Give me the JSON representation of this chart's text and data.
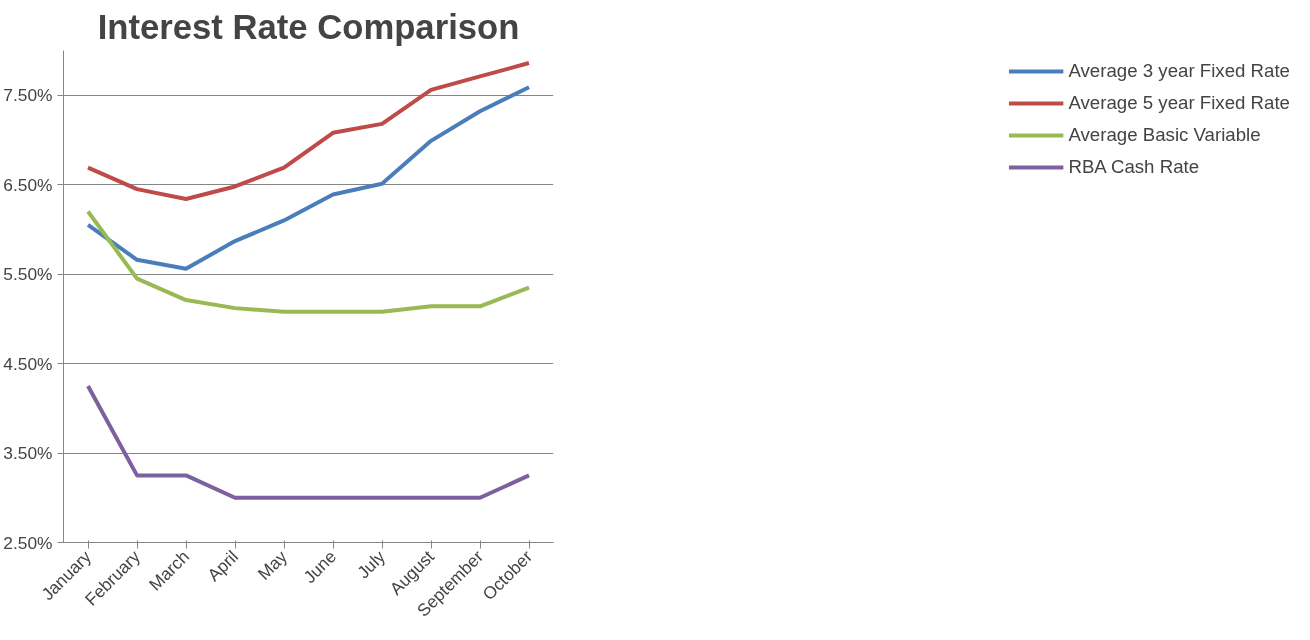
{
  "chart_data": {
    "type": "line",
    "title": "Interest Rate Comparison",
    "categories": [
      "January",
      "February",
      "March",
      "April",
      "May",
      "June",
      "July",
      "August",
      "September",
      "October"
    ],
    "series": [
      {
        "name": "Average 3 year Fixed Rate",
        "color": "#4a7ebb",
        "values": [
          6.05,
          5.66,
          5.56,
          5.87,
          6.1,
          6.39,
          6.51,
          6.99,
          7.32,
          7.59
        ]
      },
      {
        "name": "Average 5 year Fixed Rate",
        "color": "#be4b48",
        "values": [
          6.69,
          6.45,
          6.34,
          6.48,
          6.69,
          7.08,
          7.18,
          7.56,
          7.71,
          7.86
        ]
      },
      {
        "name": "Average Basic Variable",
        "color": "#98b954",
        "values": [
          6.2,
          5.45,
          5.21,
          5.12,
          5.08,
          5.08,
          5.08,
          5.14,
          5.14,
          5.35
        ]
      },
      {
        "name": "RBA Cash Rate",
        "color": "#7d60a0",
        "values": [
          4.25,
          3.25,
          3.25,
          3.0,
          3.0,
          3.0,
          3.0,
          3.0,
          3.0,
          3.25
        ]
      }
    ],
    "ylim": [
      2.5,
      8.0
    ],
    "yticks": [
      {
        "value": 2.5,
        "label": "2.50%"
      },
      {
        "value": 3.5,
        "label": "3.50%"
      },
      {
        "value": 4.5,
        "label": "4.50%"
      },
      {
        "value": 5.5,
        "label": "5.50%"
      },
      {
        "value": 6.5,
        "label": "6.50%"
      },
      {
        "value": 7.5,
        "label": "7.50%"
      }
    ],
    "grid": "y",
    "legend": "right",
    "marker": "none",
    "line_style": "solid"
  }
}
